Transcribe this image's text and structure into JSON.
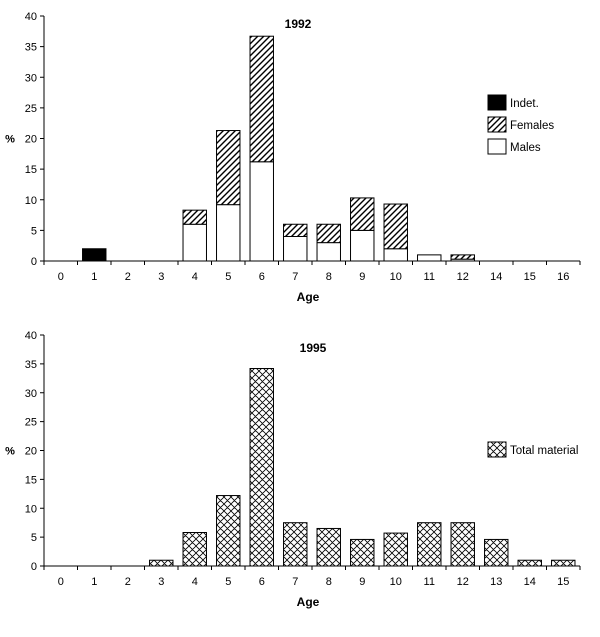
{
  "chart_data": [
    {
      "type": "bar",
      "stacked": true,
      "title": "1992",
      "xlabel": "Age",
      "ylabel": "%",
      "ylim": [
        0,
        40
      ],
      "yticks": [
        0,
        5,
        10,
        15,
        20,
        25,
        30,
        35,
        40
      ],
      "grid": false,
      "legend_position": "right",
      "categories": [
        "0",
        "1",
        "2",
        "3",
        "4",
        "5",
        "6",
        "7",
        "8",
        "9",
        "10",
        "11",
        "12",
        "14",
        "15",
        "16"
      ],
      "series": [
        {
          "name": "Males",
          "pattern": "white",
          "values": [
            0,
            0,
            0,
            0,
            6,
            9.2,
            16.2,
            4,
            3,
            5,
            2,
            1,
            0.3,
            0,
            0,
            0
          ]
        },
        {
          "name": "Females",
          "pattern": "hatch",
          "values": [
            0,
            0,
            0,
            0,
            2.3,
            12.1,
            20.5,
            2,
            3,
            5.3,
            7.3,
            0,
            0.7,
            0,
            0,
            0
          ]
        },
        {
          "name": "Indet.",
          "pattern": "black",
          "values": [
            0,
            2,
            0,
            0,
            0,
            0,
            0,
            0,
            0,
            0,
            0,
            0,
            0,
            0,
            0,
            0
          ]
        }
      ],
      "legend_order": [
        "Indet.",
        "Females",
        "Males"
      ]
    },
    {
      "type": "bar",
      "stacked": false,
      "title": "1995",
      "xlabel": "Age",
      "ylabel": "%",
      "ylim": [
        0,
        40
      ],
      "yticks": [
        0,
        5,
        10,
        15,
        20,
        25,
        30,
        35,
        40
      ],
      "grid": false,
      "legend_position": "right",
      "categories": [
        "0",
        "1",
        "2",
        "3",
        "4",
        "5",
        "6",
        "7",
        "8",
        "9",
        "10",
        "11",
        "12",
        "13",
        "14",
        "15"
      ],
      "series": [
        {
          "name": "Total material",
          "pattern": "crosshatch",
          "values": [
            0,
            0,
            0,
            1,
            5.8,
            12.2,
            34.2,
            7.5,
            6.5,
            4.6,
            5.7,
            7.5,
            7.5,
            4.6,
            1,
            1
          ]
        }
      ],
      "legend_order": [
        "Total material"
      ]
    }
  ]
}
